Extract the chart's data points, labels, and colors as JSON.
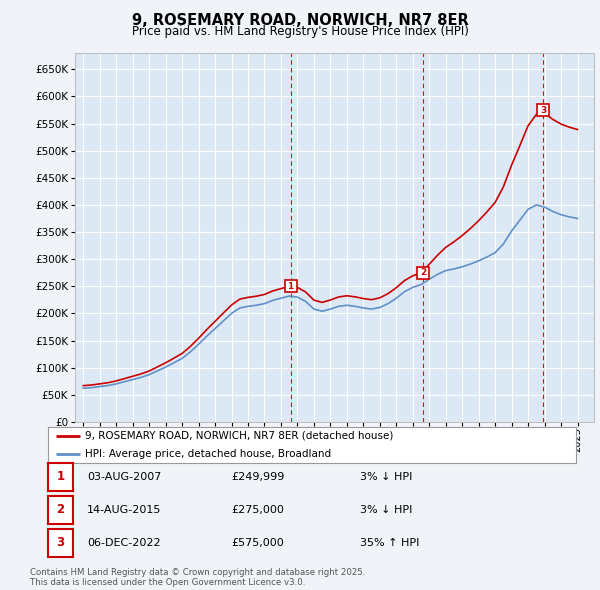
{
  "title": "9, ROSEMARY ROAD, NORWICH, NR7 8ER",
  "subtitle": "Price paid vs. HM Land Registry's House Price Index (HPI)",
  "legend_property": "9, ROSEMARY ROAD, NORWICH, NR7 8ER (detached house)",
  "legend_hpi": "HPI: Average price, detached house, Broadland",
  "footer1": "Contains HM Land Registry data © Crown copyright and database right 2025.",
  "footer2": "This data is licensed under the Open Government Licence v3.0.",
  "sales": [
    {
      "num": 1,
      "date": "03-AUG-2007",
      "price": 249999,
      "pct": "3%",
      "dir": "↓",
      "year_x": 2007.58
    },
    {
      "num": 2,
      "date": "14-AUG-2015",
      "price": 275000,
      "pct": "3%",
      "dir": "↓",
      "year_x": 2015.62
    },
    {
      "num": 3,
      "date": "06-DEC-2022",
      "price": 575000,
      "pct": "35%",
      "dir": "↑",
      "year_x": 2022.92
    }
  ],
  "ylabel_ticks": [
    0,
    50000,
    100000,
    150000,
    200000,
    250000,
    300000,
    350000,
    400000,
    450000,
    500000,
    550000,
    600000,
    650000
  ],
  "ylim": [
    0,
    680000
  ],
  "xlim": [
    1994.5,
    2026.0
  ],
  "fig_bg_color": "#f0f4f8",
  "plot_bg_color": "#dce8f4",
  "grid_color": "#ffffff",
  "hpi_color": "#6090c8",
  "property_color": "#cc0000",
  "sale_marker_color": "#cc0000",
  "dashed_line_color": "#cc0000",
  "legend_border_color": "#999999",
  "hpi_values": [
    62000,
    63000,
    65000,
    67000,
    70000,
    74000,
    78000,
    82000,
    87000,
    94000,
    101000,
    109000,
    117000,
    129000,
    143000,
    158000,
    172000,
    186000,
    200000,
    210000,
    213000,
    215000,
    218000,
    224000,
    228000,
    232000,
    230000,
    222000,
    208000,
    204000,
    208000,
    213000,
    215000,
    213000,
    210000,
    208000,
    211000,
    218000,
    228000,
    240000,
    248000,
    253000,
    263000,
    272000,
    279000,
    282000,
    286000,
    291000,
    297000,
    304000,
    312000,
    328000,
    352000,
    372000,
    392000,
    400000,
    396000,
    388000,
    382000,
    378000,
    375000
  ],
  "years": [
    1995.0,
    1995.5,
    1996.0,
    1996.5,
    1997.0,
    1997.5,
    1998.0,
    1998.5,
    1999.0,
    1999.5,
    2000.0,
    2000.5,
    2001.0,
    2001.5,
    2002.0,
    2002.5,
    2003.0,
    2003.5,
    2004.0,
    2004.5,
    2005.0,
    2005.5,
    2006.0,
    2006.5,
    2007.0,
    2007.5,
    2008.0,
    2008.5,
    2009.0,
    2009.5,
    2010.0,
    2010.5,
    2011.0,
    2011.5,
    2012.0,
    2012.5,
    2013.0,
    2013.5,
    2014.0,
    2014.5,
    2015.0,
    2015.5,
    2016.0,
    2016.5,
    2017.0,
    2017.5,
    2018.0,
    2018.5,
    2019.0,
    2019.5,
    2020.0,
    2020.5,
    2021.0,
    2021.5,
    2022.0,
    2022.5,
    2023.0,
    2023.5,
    2024.0,
    2024.5,
    2025.0
  ]
}
